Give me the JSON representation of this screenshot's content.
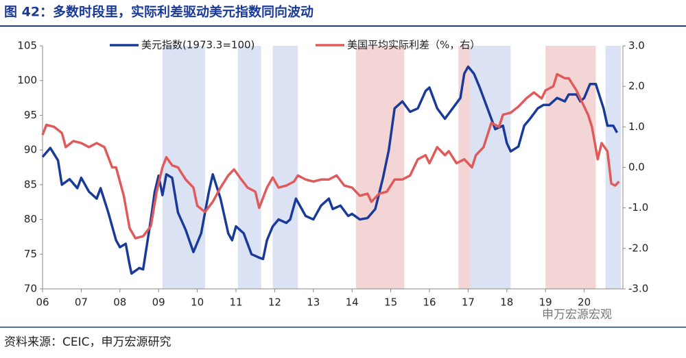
{
  "title": "图 42：多数时段里，实际利差驱动美元指数同向波动",
  "source": "资料来源：CEIC，申万宏源研究",
  "watermark": "申万宏源宏观",
  "chart_data": {
    "type": "line",
    "xlim": [
      2006,
      2021
    ],
    "xticks": [
      {
        "value": 2006,
        "label": "06"
      },
      {
        "value": 2007,
        "label": "07"
      },
      {
        "value": 2008,
        "label": "08"
      },
      {
        "value": 2009,
        "label": "09"
      },
      {
        "value": 2010,
        "label": "10"
      },
      {
        "value": 2011,
        "label": "11"
      },
      {
        "value": 2012,
        "label": "12"
      },
      {
        "value": 2013,
        "label": "13"
      },
      {
        "value": 2014,
        "label": "14"
      },
      {
        "value": 2015,
        "label": "15"
      },
      {
        "value": 2016,
        "label": "16"
      },
      {
        "value": 2017,
        "label": "17"
      },
      {
        "value": 2018,
        "label": "18"
      },
      {
        "value": 2019,
        "label": "19"
      },
      {
        "value": 2020,
        "label": "20"
      }
    ],
    "ylim": [
      70,
      105
    ],
    "yticks": [
      70,
      75,
      80,
      85,
      90,
      95,
      100,
      105
    ],
    "y2lim": [
      -3,
      3
    ],
    "y2ticks": [
      {
        "value": -3,
        "label": "-3.0"
      },
      {
        "value": -2,
        "label": "-2.0"
      },
      {
        "value": -1,
        "label": "-1.0"
      },
      {
        "value": 0,
        "label": "0.0"
      },
      {
        "value": 1,
        "label": "1.0"
      },
      {
        "value": 2,
        "label": "2.0"
      },
      {
        "value": 3,
        "label": "3.0"
      }
    ],
    "shaded_periods": [
      {
        "x": [
          2009.1,
          2010.2
        ],
        "color": "#dbe2f4"
      },
      {
        "x": [
          2011.05,
          2011.65
        ],
        "color": "#dbe2f4"
      },
      {
        "x": [
          2011.95,
          2012.6
        ],
        "color": "#dbe2f4"
      },
      {
        "x": [
          2014.1,
          2015.35
        ],
        "color": "#f3d5d6"
      },
      {
        "x": [
          2016.75,
          2017.05
        ],
        "color": "#f3d5d6"
      },
      {
        "x": [
          2017.05,
          2018.1
        ],
        "color": "#dbe2f4"
      },
      {
        "x": [
          2019.0,
          2020.3
        ],
        "color": "#f3d5d6"
      },
      {
        "x": [
          2020.55,
          2020.95
        ],
        "color": "#dbe2f4"
      }
    ],
    "series": [
      {
        "name": "美元指数(1973.3=100)",
        "color": "#1a3a9a",
        "x": [
          2006.0,
          2006.2,
          2006.4,
          2006.5,
          2006.7,
          2006.9,
          2007.0,
          2007.2,
          2007.4,
          2007.5,
          2007.7,
          2007.9,
          2008.0,
          2008.15,
          2008.25,
          2008.3,
          2008.5,
          2008.6,
          2008.8,
          2008.9,
          2009.0,
          2009.1,
          2009.2,
          2009.35,
          2009.5,
          2009.7,
          2009.9,
          2010.1,
          2010.3,
          2010.4,
          2010.6,
          2010.8,
          2010.9,
          2011.0,
          2011.2,
          2011.4,
          2011.6,
          2011.7,
          2011.8,
          2011.95,
          2012.1,
          2012.3,
          2012.4,
          2012.55,
          2012.8,
          2013.0,
          2013.2,
          2013.4,
          2013.5,
          2013.7,
          2013.9,
          2014.0,
          2014.2,
          2014.4,
          2014.6,
          2014.8,
          2014.95,
          2015.1,
          2015.3,
          2015.5,
          2015.7,
          2015.9,
          2016.0,
          2016.2,
          2016.4,
          2016.6,
          2016.8,
          2016.9,
          2017.0,
          2017.15,
          2017.3,
          2017.5,
          2017.7,
          2017.9,
          2018.0,
          2018.1,
          2018.3,
          2018.45,
          2018.6,
          2018.8,
          2018.95,
          2019.1,
          2019.3,
          2019.5,
          2019.6,
          2019.8,
          2019.9,
          2020.0,
          2020.15,
          2020.3,
          2020.5,
          2020.6,
          2020.75,
          2020.85
        ],
        "values": [
          89,
          90.3,
          88.5,
          85,
          85.8,
          84.5,
          86,
          84,
          83,
          84.5,
          81,
          77,
          76,
          76.5,
          73.5,
          72.2,
          73,
          72.8,
          80,
          84,
          86.3,
          83.5,
          86.5,
          86,
          81,
          78.5,
          75.3,
          78,
          84,
          86.5,
          83,
          78,
          77,
          79,
          78,
          75,
          74.5,
          74.3,
          77,
          79,
          80,
          79.5,
          80,
          83,
          80.5,
          80,
          82,
          83,
          81.5,
          82,
          80.5,
          80.8,
          80,
          80.2,
          81.5,
          86,
          90,
          96,
          97,
          95.5,
          96,
          98.5,
          99,
          96,
          94.5,
          96,
          97.5,
          101,
          102,
          101,
          99,
          96,
          93,
          93.5,
          91,
          89.8,
          90.5,
          93.5,
          94.5,
          96,
          96.5,
          96.5,
          97.5,
          97,
          98,
          98,
          97,
          97.5,
          99.5,
          99.5,
          96,
          93.5,
          93.5,
          92.5
        ]
      },
      {
        "name": "美国平均实际利差（%，右）",
        "color": "#e05a5a",
        "axis": "y2",
        "x": [
          2006.0,
          2006.1,
          2006.3,
          2006.5,
          2006.6,
          2006.8,
          2007.0,
          2007.2,
          2007.4,
          2007.6,
          2007.8,
          2007.9,
          2008.1,
          2008.25,
          2008.4,
          2008.6,
          2008.8,
          2008.95,
          2009.1,
          2009.2,
          2009.35,
          2009.5,
          2009.7,
          2009.9,
          2010.0,
          2010.2,
          2010.4,
          2010.6,
          2010.8,
          2010.95,
          2011.1,
          2011.3,
          2011.5,
          2011.6,
          2011.8,
          2011.95,
          2012.1,
          2012.3,
          2012.5,
          2012.6,
          2012.8,
          2013.0,
          2013.2,
          2013.4,
          2013.6,
          2013.8,
          2014.0,
          2014.2,
          2014.4,
          2014.5,
          2014.7,
          2014.9,
          2015.1,
          2015.3,
          2015.5,
          2015.7,
          2015.9,
          2016.0,
          2016.2,
          2016.4,
          2016.5,
          2016.7,
          2016.9,
          2017.1,
          2017.2,
          2017.4,
          2017.6,
          2017.8,
          2017.9,
          2018.1,
          2018.3,
          2018.5,
          2018.7,
          2018.9,
          2019.0,
          2019.2,
          2019.3,
          2019.5,
          2019.6,
          2019.8,
          2019.95,
          2020.1,
          2020.2,
          2020.35,
          2020.45,
          2020.6,
          2020.7,
          2020.8,
          2020.9
        ],
        "values": [
          0.8,
          1.05,
          1.0,
          0.85,
          0.5,
          0.65,
          0.6,
          0.5,
          0.6,
          0.5,
          0.0,
          0.0,
          -0.7,
          -1.5,
          -1.75,
          -1.7,
          -1.45,
          -0.6,
          0.0,
          0.25,
          0.05,
          0.0,
          -0.3,
          -0.5,
          -0.95,
          -1.1,
          -0.85,
          -0.5,
          -0.2,
          -0.05,
          -0.25,
          -0.5,
          -0.6,
          -1.0,
          -0.5,
          -0.25,
          -0.5,
          -0.45,
          -0.35,
          -0.2,
          -0.3,
          -0.35,
          -0.3,
          -0.3,
          -0.2,
          -0.45,
          -0.5,
          -0.7,
          -0.65,
          -0.85,
          -0.65,
          -0.6,
          -0.3,
          -0.3,
          -0.2,
          0.2,
          0.3,
          0.1,
          0.5,
          0.3,
          0.4,
          0.1,
          0.2,
          0.0,
          0.3,
          0.5,
          1.1,
          1.0,
          1.3,
          1.35,
          1.5,
          1.7,
          1.85,
          1.7,
          1.9,
          2.0,
          2.3,
          2.2,
          2.2,
          1.9,
          1.6,
          1.3,
          1.0,
          0.2,
          0.6,
          0.4,
          -0.4,
          -0.45,
          -0.35
        ]
      }
    ]
  }
}
